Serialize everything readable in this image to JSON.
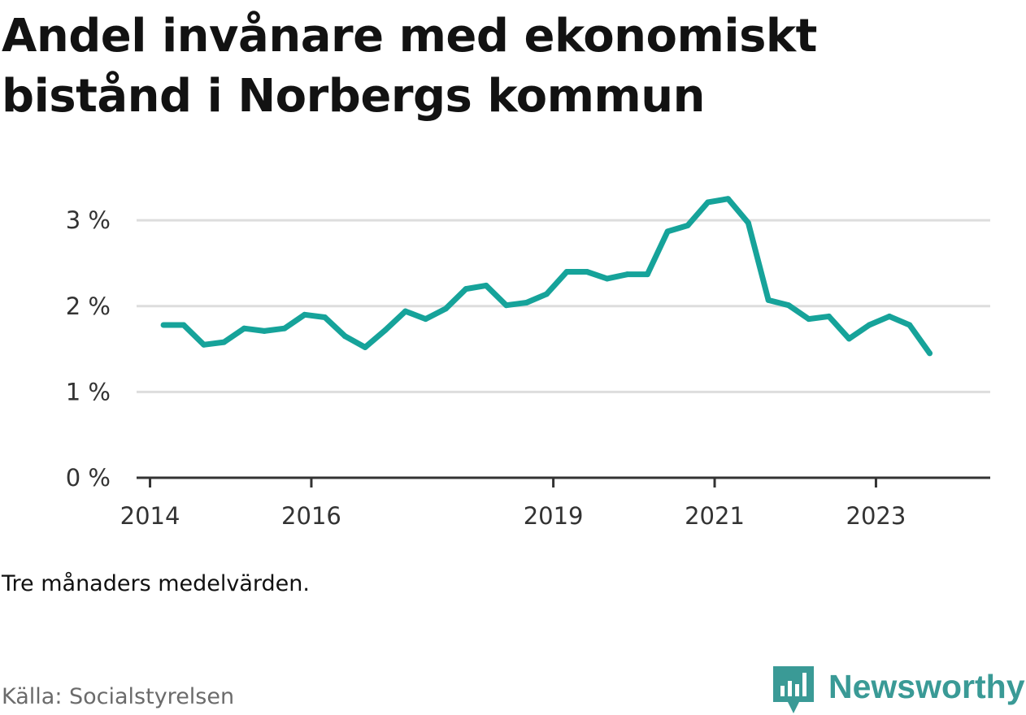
{
  "title": "Andel invånare med ekonomiskt bistånd i Norbergs kommun",
  "note": "Tre månaders medelvärden.",
  "source": "Källa: Socialstyrelsen",
  "brand": {
    "name": "Newsworthy",
    "icon": "newsworthy-logo-icon",
    "color": "#3a9a96"
  },
  "colors": {
    "line": "#16a39a",
    "grid": "#dddddd",
    "axis": "#333333",
    "tick_text": "#333333"
  },
  "chart_data": {
    "type": "line",
    "title": "Andel invånare med ekonomiskt bistånd i Norbergs kommun",
    "xlabel": "",
    "ylabel": "",
    "ylim": [
      0,
      3.2
    ],
    "xlim": [
      "2013-11",
      "2024-06"
    ],
    "yticks": [
      0,
      1,
      2,
      3
    ],
    "ytick_labels": [
      "0 %",
      "1 %",
      "2 %",
      "3 %"
    ],
    "xticks": [
      "2014-01",
      "2016-01",
      "2019-01",
      "2021-01",
      "2023-01"
    ],
    "xtick_labels": [
      "2014",
      "2016",
      "2019",
      "2021",
      "2023"
    ],
    "grid": true,
    "series": [
      {
        "x": [
          "2014-03",
          "2014-06",
          "2014-09",
          "2014-12",
          "2015-03",
          "2015-06",
          "2015-09",
          "2015-12",
          "2016-03",
          "2016-06",
          "2016-09",
          "2016-12",
          "2017-03",
          "2017-06",
          "2017-09",
          "2017-12",
          "2018-03",
          "2018-06",
          "2018-09",
          "2018-12",
          "2019-03",
          "2019-06",
          "2019-09",
          "2019-12",
          "2020-03",
          "2020-06",
          "2020-09",
          "2020-12",
          "2021-03",
          "2021-06",
          "2021-09",
          "2021-12",
          "2022-03",
          "2022-06",
          "2022-09",
          "2022-12",
          "2023-03",
          "2023-06",
          "2023-09",
          "2023-12"
        ],
        "values": [
          1.78,
          1.78,
          1.55,
          1.58,
          1.74,
          1.71,
          1.74,
          1.9,
          1.87,
          1.65,
          1.52,
          1.72,
          1.94,
          1.85,
          1.97,
          2.2,
          2.24,
          2.01,
          2.04,
          2.14,
          2.4,
          2.4,
          2.32,
          2.37,
          2.37,
          2.87,
          2.94,
          3.21,
          3.25,
          2.97,
          2.07,
          2.01,
          1.85,
          1.88,
          1.62,
          1.78,
          1.88,
          1.78,
          1.45,
          null
        ]
      }
    ]
  }
}
